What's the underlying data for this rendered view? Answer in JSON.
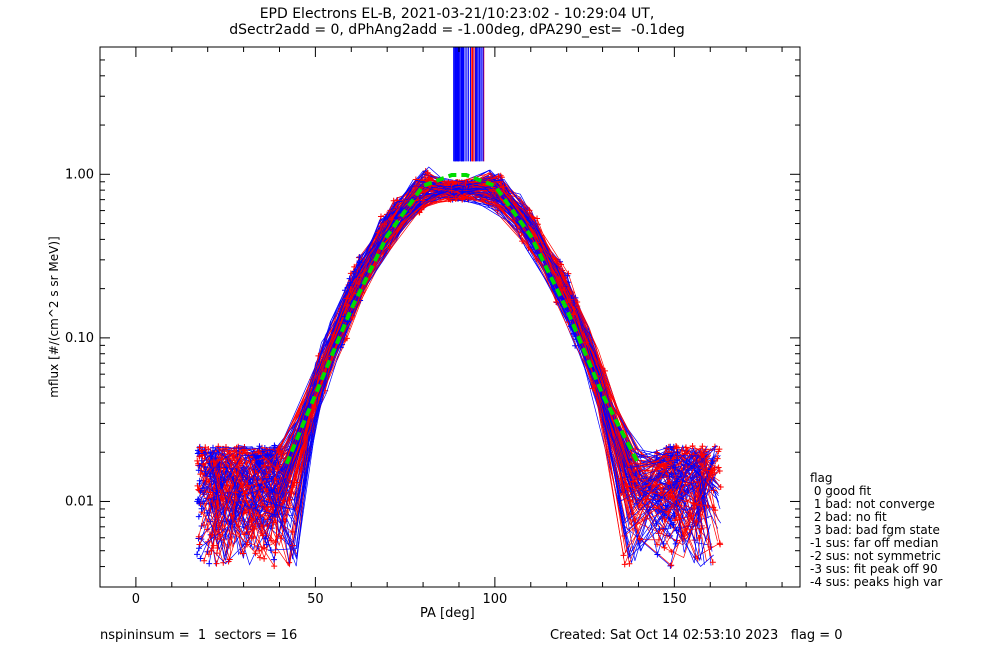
{
  "chart_data": {
    "type": "line",
    "title_line1": "EPD Electrons EL-B, 2021-03-21/10:23:02 - 10:29:04 UT,",
    "title_line2": "dSectr2add = 0, dPhAng2add = -1.00deg, dPA290_est=  -0.1deg",
    "xlabel": "PA [deg]",
    "ylabel": "mflux [#/(cm^2 s sr MeV)]",
    "xlim": [
      -10,
      185
    ],
    "ylim": [
      0.003,
      6
    ],
    "yscale": "log",
    "x_ticks": [
      "0",
      "50",
      "100",
      "150"
    ],
    "y_ticks": [
      "0.01",
      "0.10",
      "1.00"
    ],
    "series": [
      {
        "color": "#ff0000",
        "marker": "+"
      },
      {
        "color": "#0000ff",
        "marker": "+"
      },
      {
        "color": "#00dd00",
        "style": "dashed",
        "x": [
          42,
          50,
          60,
          70,
          80,
          88,
          92,
          100,
          110,
          120,
          130,
          140
        ],
        "values": [
          0.017,
          0.045,
          0.15,
          0.42,
          0.85,
          0.99,
          0.99,
          0.85,
          0.42,
          0.15,
          0.045,
          0.017
        ]
      }
    ]
  },
  "legend": {
    "title": "flag",
    "items": [
      " 0 good fit",
      " 1 bad: not converge",
      " 2 bad: no fit",
      " 3 bad: bad fgm state",
      "-1 sus: far off median",
      "-2 sus: not symmetric",
      "-3 sus: fit peak off 90",
      "-4 sus: peaks high var"
    ]
  },
  "footer": {
    "left": "nspininsum =  1  sectors = 16",
    "right": "Created: Sat Oct 14 02:53:10 2023   flag = 0"
  }
}
